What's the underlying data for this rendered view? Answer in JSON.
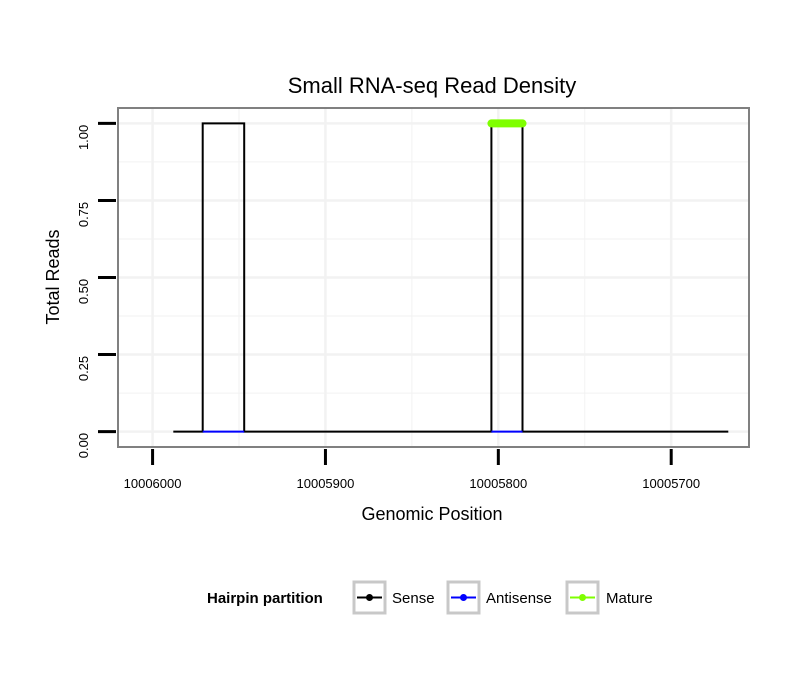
{
  "chart_data": {
    "type": "line",
    "title": "Small RNA-seq Read Density",
    "xlabel": "Genomic Position",
    "ylabel": "Total Reads",
    "x_reversed": true,
    "xlim": [
      10006020,
      10005655
    ],
    "ylim": [
      -0.05,
      1.05
    ],
    "x_ticks": [
      10006000,
      10005900,
      10005800,
      10005700
    ],
    "x_tick_labels": [
      "10006000",
      "10005900",
      "10005800",
      "10005700"
    ],
    "y_ticks": [
      0,
      0.25,
      0.5,
      0.75,
      1.0
    ],
    "y_tick_labels": [
      "0.00",
      "0.25",
      "0.50",
      "0.75",
      "1.00"
    ],
    "legend_title": "Hairpin partition",
    "legend_position": "bottom",
    "colors": {
      "sense": "#000000",
      "antisense": "#0000ff",
      "mature": "#7fff00",
      "panel_border": "#808080",
      "grid": "#f2f2f2"
    },
    "series": [
      {
        "name": "Sense",
        "color": "#000000",
        "x": [
          10005988,
          10005971,
          10005971,
          10005947,
          10005947,
          10005804,
          10005804,
          10005786,
          10005786,
          10005667
        ],
        "y": [
          0,
          0,
          1,
          1,
          0,
          0,
          1,
          1,
          0,
          0
        ]
      },
      {
        "name": "Antisense",
        "color": "#0000ff",
        "segments": [
          {
            "x": [
              10005971,
              10005947
            ],
            "y": [
              0,
              0
            ]
          },
          {
            "x": [
              10005804,
              10005786
            ],
            "y": [
              0,
              0
            ]
          }
        ]
      },
      {
        "name": "Mature",
        "color": "#7fff00",
        "segments": [
          {
            "x": [
              10005804,
              10005786
            ],
            "y": [
              1,
              1
            ]
          }
        ]
      }
    ],
    "legend": [
      {
        "label": "Sense",
        "color": "#000000"
      },
      {
        "label": "Antisense",
        "color": "#0000ff"
      },
      {
        "label": "Mature",
        "color": "#7fff00"
      }
    ]
  }
}
